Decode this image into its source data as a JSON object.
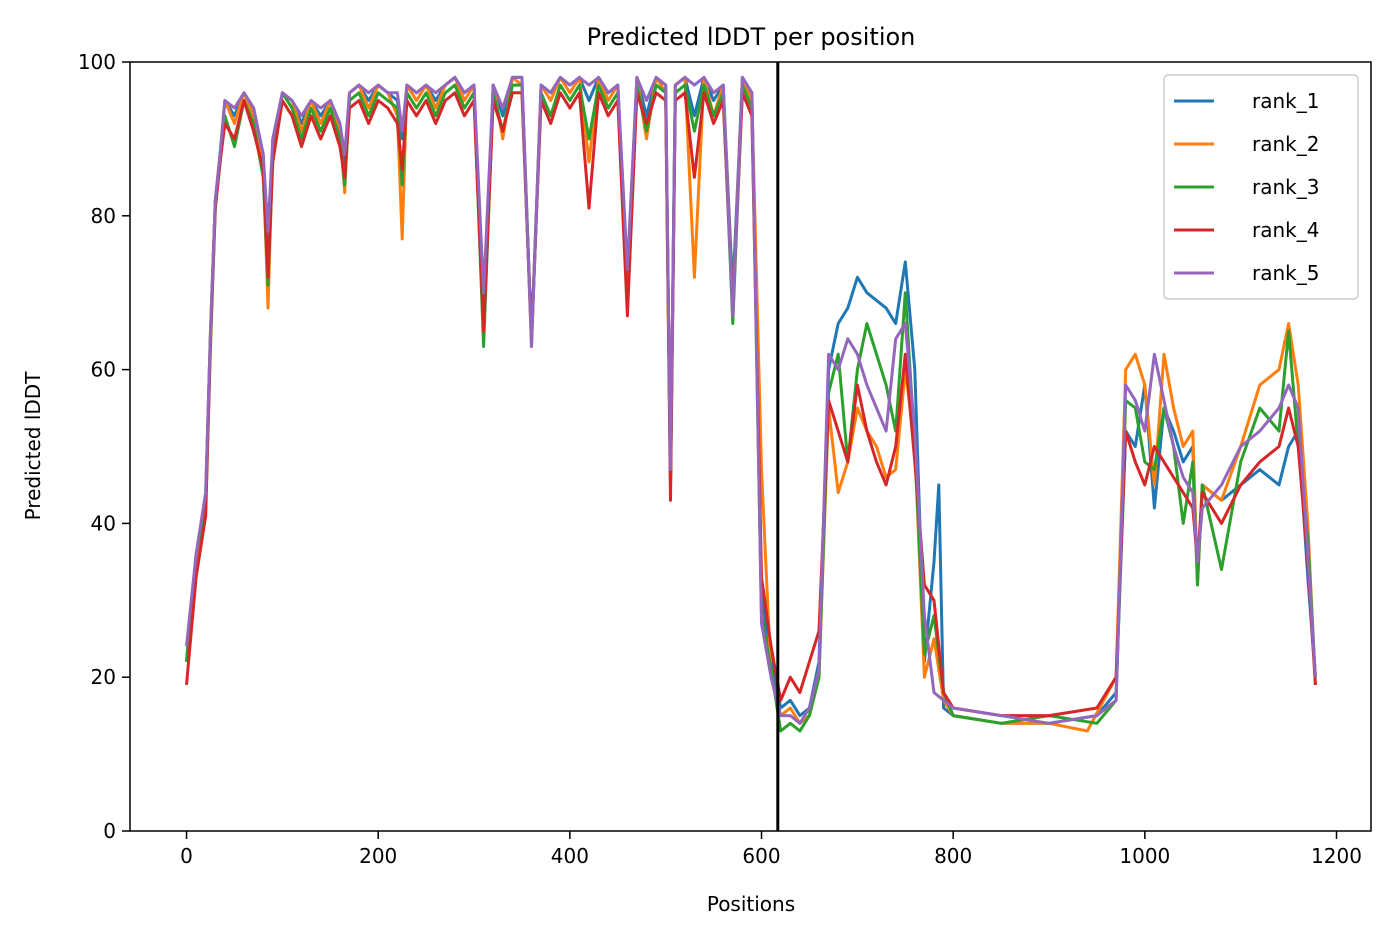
{
  "chart_data": {
    "type": "line",
    "title": "Predicted lDDT per position",
    "xlabel": "Positions",
    "ylabel": "Predicted lDDT",
    "xlim": [
      -59,
      1236
    ],
    "ylim": [
      0,
      100
    ],
    "xticks": [
      0,
      200,
      400,
      600,
      800,
      1000,
      1200
    ],
    "yticks": [
      0,
      20,
      40,
      60,
      80,
      100
    ],
    "grid": false,
    "legend_position": "top-right",
    "vline_x": 617,
    "series": [
      {
        "name": "rank_1",
        "color": "#1f77b4",
        "x": [
          0,
          10,
          20,
          25,
          30,
          35,
          40,
          50,
          60,
          70,
          80,
          85,
          90,
          100,
          110,
          120,
          130,
          140,
          150,
          160,
          165,
          170,
          180,
          190,
          200,
          210,
          220,
          225,
          230,
          240,
          250,
          260,
          270,
          280,
          290,
          300,
          310,
          320,
          330,
          340,
          350,
          360,
          370,
          380,
          390,
          400,
          410,
          420,
          430,
          440,
          450,
          460,
          470,
          480,
          490,
          500,
          505,
          510,
          520,
          530,
          540,
          550,
          560,
          570,
          580,
          590,
          600,
          610,
          620,
          630,
          640,
          650,
          660,
          670,
          680,
          690,
          700,
          710,
          720,
          730,
          740,
          750,
          760,
          770,
          780,
          785,
          790,
          800,
          850,
          900,
          950,
          970,
          980,
          990,
          1000,
          1010,
          1020,
          1030,
          1040,
          1050,
          1055,
          1060,
          1080,
          1100,
          1120,
          1140,
          1150,
          1160,
          1170,
          1178
        ],
        "y": [
          22,
          35,
          44,
          65,
          82,
          88,
          95,
          93,
          96,
          94,
          88,
          72,
          90,
          96,
          95,
          92,
          95,
          93,
          95,
          92,
          86,
          96,
          97,
          95,
          97,
          96,
          95,
          90,
          97,
          96,
          97,
          95,
          97,
          98,
          96,
          97,
          65,
          97,
          93,
          98,
          98,
          64,
          97,
          96,
          98,
          97,
          98,
          95,
          98,
          96,
          97,
          72,
          98,
          93,
          98,
          97,
          45,
          97,
          98,
          93,
          98,
          95,
          97,
          70,
          98,
          96,
          31,
          22,
          16,
          17,
          15,
          16,
          22,
          60,
          66,
          68,
          72,
          70,
          69,
          68,
          66,
          74,
          60,
          22,
          35,
          45,
          16,
          15,
          14,
          14,
          15,
          18,
          52,
          50,
          58,
          42,
          55,
          52,
          48,
          50,
          33,
          45,
          43,
          45,
          47,
          45,
          50,
          52,
          33,
          20
        ]
      },
      {
        "name": "rank_2",
        "color": "#ff7f0e",
        "x": [
          0,
          10,
          20,
          25,
          30,
          35,
          40,
          50,
          60,
          70,
          80,
          85,
          90,
          100,
          110,
          120,
          130,
          140,
          150,
          160,
          165,
          170,
          180,
          190,
          200,
          210,
          220,
          225,
          230,
          240,
          250,
          260,
          270,
          280,
          290,
          300,
          310,
          320,
          330,
          340,
          350,
          360,
          370,
          380,
          390,
          400,
          410,
          420,
          430,
          440,
          450,
          460,
          470,
          480,
          490,
          500,
          505,
          510,
          520,
          530,
          540,
          550,
          560,
          570,
          580,
          590,
          600,
          610,
          620,
          630,
          640,
          650,
          660,
          670,
          680,
          690,
          700,
          710,
          720,
          730,
          740,
          750,
          760,
          770,
          780,
          790,
          800,
          850,
          900,
          940,
          970,
          980,
          990,
          1000,
          1010,
          1020,
          1030,
          1040,
          1050,
          1055,
          1060,
          1080,
          1100,
          1120,
          1140,
          1150,
          1160,
          1170,
          1178
        ],
        "y": [
          22,
          35,
          43,
          65,
          82,
          88,
          95,
          92,
          96,
          93,
          87,
          68,
          89,
          96,
          95,
          91,
          95,
          92,
          95,
          91,
          83,
          96,
          97,
          94,
          97,
          96,
          93,
          77,
          97,
          95,
          97,
          94,
          97,
          98,
          95,
          97,
          66,
          97,
          90,
          98,
          97,
          63,
          97,
          95,
          98,
          96,
          98,
          87,
          98,
          95,
          97,
          69,
          98,
          90,
          98,
          96,
          46,
          97,
          98,
          72,
          98,
          93,
          97,
          68,
          98,
          95,
          47,
          20,
          15,
          16,
          14,
          15,
          20,
          55,
          44,
          48,
          55,
          52,
          50,
          46,
          47,
          60,
          50,
          20,
          25,
          17,
          15,
          14,
          14,
          13,
          20,
          60,
          62,
          58,
          45,
          62,
          55,
          50,
          52,
          32,
          45,
          43,
          50,
          58,
          60,
          66,
          58,
          40,
          19
        ]
      },
      {
        "name": "rank_3",
        "color": "#2ca02c",
        "x": [
          0,
          10,
          20,
          25,
          30,
          35,
          40,
          50,
          60,
          70,
          80,
          85,
          90,
          100,
          110,
          120,
          130,
          140,
          150,
          160,
          165,
          170,
          180,
          190,
          200,
          210,
          220,
          225,
          230,
          240,
          250,
          260,
          270,
          280,
          290,
          300,
          310,
          320,
          330,
          340,
          350,
          360,
          370,
          380,
          390,
          400,
          410,
          420,
          430,
          440,
          450,
          460,
          470,
          480,
          490,
          500,
          505,
          510,
          520,
          530,
          540,
          550,
          560,
          570,
          580,
          590,
          600,
          610,
          620,
          630,
          640,
          650,
          660,
          670,
          680,
          690,
          700,
          710,
          720,
          730,
          740,
          750,
          760,
          770,
          780,
          790,
          800,
          850,
          900,
          950,
          970,
          980,
          990,
          1000,
          1010,
          1020,
          1030,
          1040,
          1050,
          1055,
          1060,
          1080,
          1100,
          1120,
          1140,
          1150,
          1160,
          1170,
          1178
        ],
        "y": [
          22,
          36,
          42,
          63,
          81,
          87,
          93,
          89,
          95,
          92,
          85,
          71,
          88,
          96,
          94,
          90,
          94,
          91,
          94,
          90,
          84,
          95,
          96,
          93,
          96,
          95,
          94,
          84,
          96,
          94,
          96,
          93,
          96,
          97,
          94,
          96,
          63,
          96,
          91,
          97,
          97,
          64,
          96,
          93,
          97,
          95,
          97,
          90,
          97,
          94,
          96,
          70,
          97,
          91,
          97,
          96,
          45,
          96,
          97,
          91,
          97,
          93,
          96,
          66,
          97,
          94,
          28,
          21,
          13,
          14,
          13,
          15,
          20,
          57,
          62,
          48,
          60,
          66,
          62,
          58,
          52,
          70,
          50,
          23,
          28,
          18,
          15,
          14,
          15,
          14,
          17,
          56,
          55,
          48,
          47,
          55,
          50,
          40,
          48,
          32,
          45,
          34,
          48,
          55,
          52,
          65,
          50,
          38,
          20
        ]
      },
      {
        "name": "rank_4",
        "color": "#d62728",
        "x": [
          0,
          10,
          20,
          25,
          30,
          35,
          40,
          50,
          60,
          70,
          80,
          85,
          90,
          100,
          110,
          120,
          130,
          140,
          150,
          160,
          165,
          170,
          180,
          190,
          200,
          210,
          220,
          225,
          230,
          240,
          250,
          260,
          270,
          280,
          290,
          300,
          310,
          320,
          330,
          340,
          350,
          360,
          370,
          380,
          390,
          400,
          410,
          420,
          430,
          440,
          450,
          460,
          470,
          480,
          490,
          500,
          505,
          510,
          520,
          530,
          540,
          550,
          560,
          570,
          580,
          590,
          600,
          610,
          620,
          630,
          640,
          650,
          660,
          670,
          680,
          690,
          700,
          710,
          720,
          730,
          740,
          750,
          760,
          770,
          780,
          790,
          800,
          850,
          900,
          950,
          970,
          980,
          990,
          1000,
          1010,
          1020,
          1030,
          1040,
          1050,
          1055,
          1060,
          1080,
          1100,
          1120,
          1140,
          1150,
          1160,
          1170,
          1178
        ],
        "y": [
          19,
          33,
          41,
          64,
          81,
          87,
          92,
          90,
          95,
          91,
          86,
          72,
          87,
          95,
          93,
          89,
          93,
          90,
          93,
          89,
          85,
          94,
          95,
          92,
          95,
          94,
          92,
          86,
          95,
          93,
          95,
          92,
          95,
          96,
          93,
          95,
          65,
          95,
          91,
          96,
          96,
          64,
          95,
          92,
          96,
          94,
          96,
          81,
          96,
          93,
          95,
          67,
          96,
          92,
          96,
          95,
          43,
          95,
          96,
          85,
          96,
          92,
          95,
          68,
          96,
          93,
          33,
          24,
          17,
          20,
          18,
          22,
          26,
          56,
          52,
          48,
          58,
          52,
          48,
          45,
          50,
          62,
          48,
          32,
          30,
          18,
          16,
          15,
          15,
          16,
          20,
          52,
          48,
          45,
          50,
          48,
          46,
          44,
          42,
          35,
          44,
          40,
          45,
          48,
          50,
          55,
          50,
          35,
          19
        ]
      },
      {
        "name": "rank_5",
        "color": "#9467bd",
        "x": [
          0,
          10,
          20,
          25,
          30,
          35,
          40,
          50,
          60,
          70,
          80,
          85,
          90,
          100,
          110,
          120,
          130,
          140,
          150,
          160,
          165,
          170,
          180,
          190,
          200,
          210,
          220,
          225,
          230,
          240,
          250,
          260,
          270,
          280,
          290,
          300,
          310,
          320,
          330,
          340,
          350,
          360,
          370,
          380,
          390,
          400,
          410,
          420,
          430,
          440,
          450,
          460,
          470,
          480,
          490,
          500,
          505,
          510,
          520,
          530,
          540,
          550,
          560,
          570,
          580,
          590,
          600,
          610,
          620,
          630,
          640,
          650,
          660,
          670,
          680,
          690,
          700,
          710,
          720,
          730,
          740,
          750,
          760,
          770,
          780,
          790,
          800,
          850,
          900,
          950,
          970,
          980,
          990,
          1000,
          1010,
          1020,
          1030,
          1040,
          1050,
          1055,
          1060,
          1080,
          1100,
          1120,
          1140,
          1150,
          1160,
          1170,
          1178
        ],
        "y": [
          24,
          36,
          44,
          65,
          82,
          88,
          95,
          94,
          96,
          94,
          88,
          78,
          90,
          96,
          95,
          93,
          95,
          94,
          95,
          92,
          88,
          96,
          97,
          96,
          97,
          96,
          96,
          91,
          97,
          96,
          97,
          96,
          97,
          98,
          96,
          97,
          70,
          97,
          94,
          98,
          98,
          63,
          97,
          96,
          98,
          97,
          98,
          97,
          98,
          96,
          97,
          73,
          98,
          95,
          98,
          97,
          47,
          97,
          98,
          97,
          98,
          96,
          97,
          67,
          98,
          96,
          27,
          20,
          15,
          15,
          14,
          16,
          21,
          62,
          60,
          64,
          62,
          58,
          55,
          52,
          64,
          66,
          52,
          28,
          18,
          17,
          16,
          15,
          14,
          15,
          17,
          58,
          56,
          52,
          62,
          56,
          50,
          46,
          44,
          35,
          42,
          45,
          50,
          52,
          55,
          58,
          55,
          36,
          20
        ]
      }
    ]
  }
}
